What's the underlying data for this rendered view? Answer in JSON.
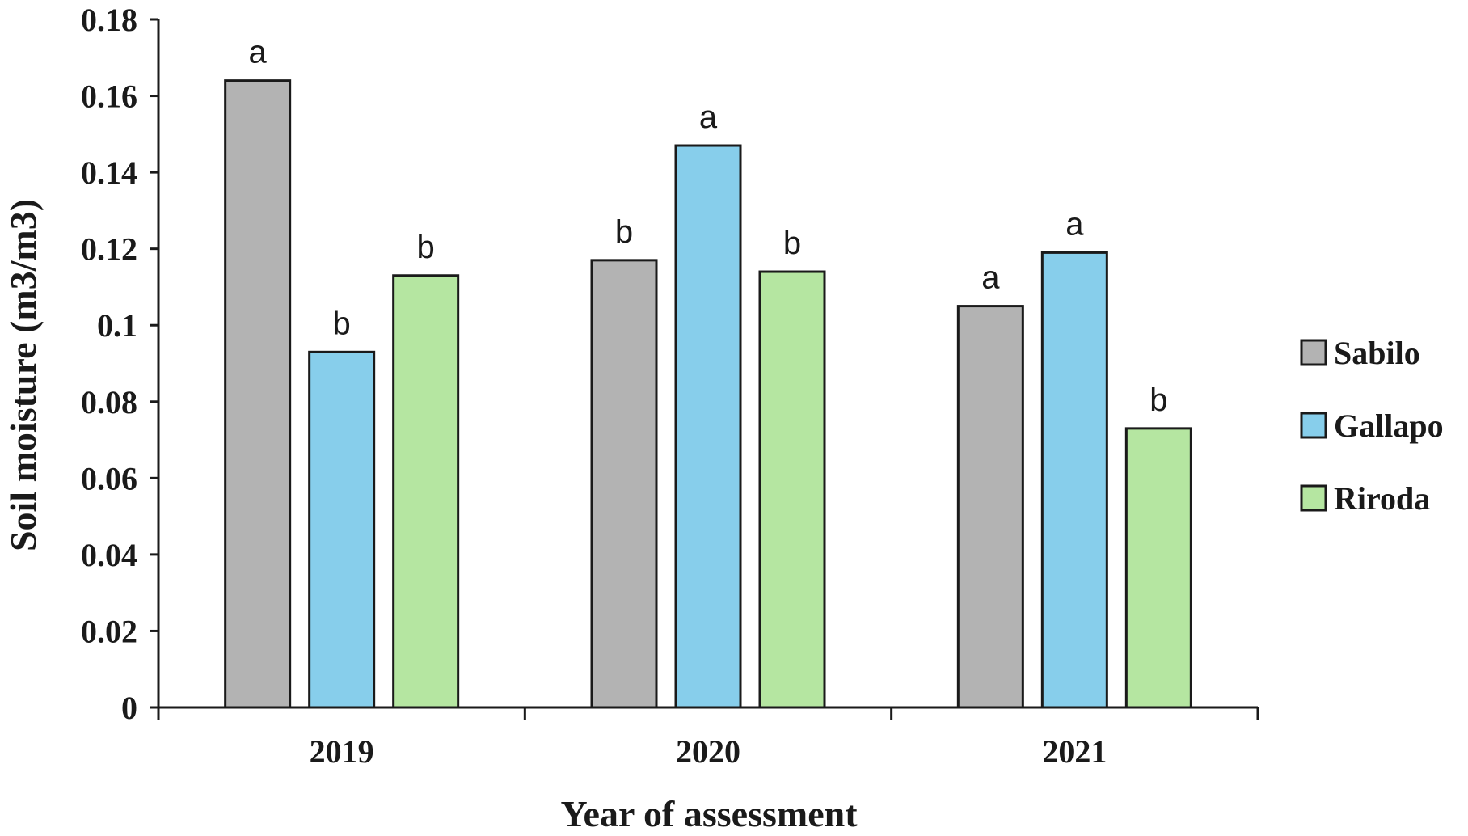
{
  "chart_data": {
    "type": "bar",
    "title": "",
    "xlabel": "Year of assessment",
    "ylabel": "Soil moisture (m3/m3)",
    "ylim": [
      0,
      0.18
    ],
    "y_ticks": [
      "0",
      "0.02",
      "0.04",
      "0.06",
      "0.08",
      "0.1",
      "0.12",
      "0.14",
      "0.16",
      "0.18"
    ],
    "categories": [
      "2019",
      "2020",
      "2021"
    ],
    "series": [
      {
        "name": "Sabilo",
        "color": "#b3b3b3",
        "values": [
          0.164,
          0.117,
          0.105
        ],
        "labels": [
          "a",
          "b",
          "a"
        ]
      },
      {
        "name": "Gallapo",
        "color": "#87ceeb",
        "values": [
          0.093,
          0.147,
          0.119
        ],
        "labels": [
          "b",
          "a",
          "a"
        ]
      },
      {
        "name": "Riroda",
        "color": "#b5e6a1",
        "values": [
          0.113,
          0.114,
          0.073
        ],
        "labels": [
          "b",
          "b",
          "b"
        ]
      }
    ],
    "grid": false,
    "legend_position": "right"
  }
}
